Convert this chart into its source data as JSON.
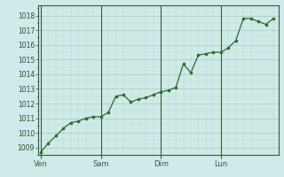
{
  "background_color": "#ceeaea",
  "line_color": "#2d6a2d",
  "marker_color": "#2d6a2d",
  "grid_major_color": "#aacaaa",
  "grid_minor_color": "#c0d8c0",
  "axis_color": "#3a5a3a",
  "tick_label_color": "#2d4a2d",
  "ylim": [
    1008.5,
    1018.7
  ],
  "yticks": [
    1009,
    1010,
    1011,
    1012,
    1013,
    1014,
    1015,
    1016,
    1017,
    1018
  ],
  "day_labels": [
    "Ven",
    "Sam",
    "Dim",
    "Lun"
  ],
  "day_positions": [
    0,
    24,
    48,
    72
  ],
  "x_values": [
    0,
    3,
    6,
    9,
    12,
    15,
    18,
    21,
    24,
    27,
    30,
    33,
    36,
    39,
    42,
    45,
    48,
    51,
    54,
    57,
    60,
    63,
    66,
    69,
    72,
    75,
    78,
    81,
    84,
    87,
    90,
    93
  ],
  "y_values": [
    1008.7,
    1009.3,
    1009.8,
    1010.3,
    1010.7,
    1010.8,
    1011.0,
    1011.1,
    1011.1,
    1011.4,
    1012.5,
    1012.6,
    1012.1,
    1012.3,
    1012.4,
    1012.6,
    1012.8,
    1012.9,
    1013.1,
    1014.7,
    1014.1,
    1015.3,
    1015.4,
    1015.5,
    1015.5,
    1015.8,
    1016.3,
    1017.8,
    1017.8,
    1017.6,
    1017.4,
    1017.8
  ],
  "xlim": [
    -1,
    95
  ]
}
